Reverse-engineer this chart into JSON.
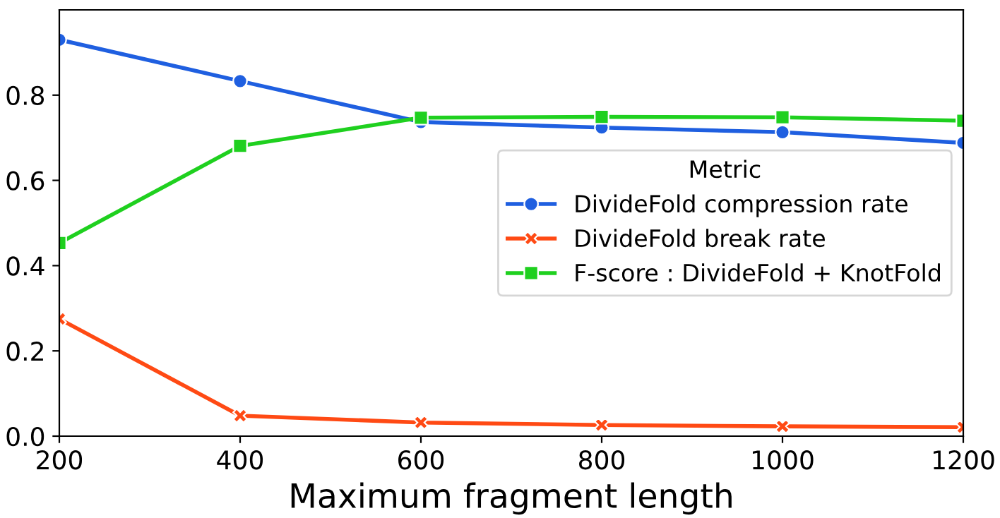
{
  "chart_data": {
    "type": "line",
    "xlabel": "Maximum fragment length",
    "legend_title": "Metric",
    "legend": "center right",
    "grid": false,
    "x": [
      200,
      400,
      600,
      800,
      1000,
      1200
    ],
    "xlim": [
      200,
      1200
    ],
    "xticks": [
      200,
      400,
      600,
      800,
      1000,
      1200
    ],
    "ylim": [
      0,
      1.0
    ],
    "yticks": [
      {
        "value": 0,
        "label": "0.0"
      },
      0.2,
      0.4,
      0.6,
      0.8
    ],
    "series": [
      {
        "name": "DivideFold compression rate",
        "color": "#1f5fe0",
        "marker": "circle",
        "values": [
          0.93,
          0.833,
          0.737,
          0.724,
          0.713,
          0.688
        ]
      },
      {
        "name": "DivideFold break rate",
        "color": "#ff4a14",
        "marker": "cross",
        "values": [
          0.275,
          0.048,
          0.032,
          0.026,
          0.023,
          0.021
        ]
      },
      {
        "name": "F-score : DivideFold + KnotFold",
        "color": "#1fd01f",
        "marker": "square",
        "values": [
          0.453,
          0.681,
          0.747,
          0.749,
          0.748,
          0.74
        ]
      }
    ]
  }
}
